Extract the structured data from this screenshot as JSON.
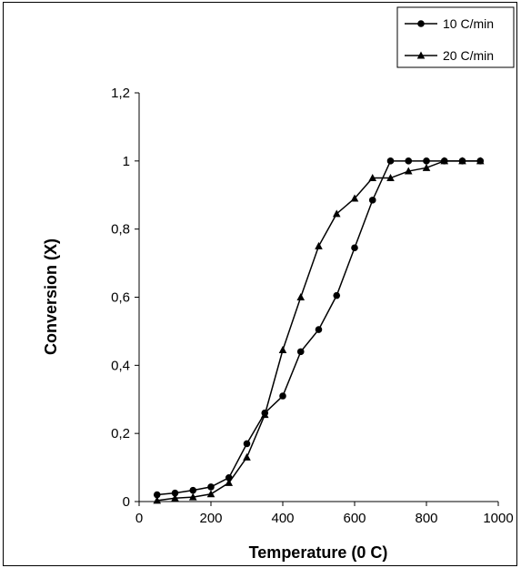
{
  "chart_data": {
    "type": "line",
    "title": "",
    "xlabel": "Temperature (0 C)",
    "ylabel": "Conversion (X)",
    "xlim": [
      0,
      1000
    ],
    "ylim": [
      0,
      1.2
    ],
    "x_ticks": [
      "0",
      "200",
      "400",
      "600",
      "800",
      "1000"
    ],
    "y_ticks": [
      "0",
      "0,2",
      "0,4",
      "0,6",
      "0,8",
      "1",
      "1,2"
    ],
    "grid": false,
    "legend_position": "top-right",
    "series": [
      {
        "name": "10 C/min",
        "marker": "circle",
        "color": "#000000",
        "x": [
          50,
          100,
          150,
          200,
          250,
          300,
          350,
          400,
          450,
          500,
          550,
          600,
          650,
          700,
          750,
          800,
          850,
          900,
          950
        ],
        "y": [
          0.02,
          0.025,
          0.033,
          0.043,
          0.07,
          0.17,
          0.26,
          0.31,
          0.44,
          0.505,
          0.605,
          0.745,
          0.885,
          1.0,
          1.0,
          1.0,
          1.0,
          1.0,
          1.0
        ]
      },
      {
        "name": "20 C/min",
        "marker": "triangle",
        "color": "#000000",
        "x": [
          50,
          100,
          150,
          200,
          250,
          300,
          350,
          400,
          450,
          500,
          550,
          600,
          650,
          700,
          750,
          800,
          850,
          900,
          950
        ],
        "y": [
          0.003,
          0.01,
          0.013,
          0.022,
          0.055,
          0.13,
          0.255,
          0.445,
          0.6,
          0.75,
          0.845,
          0.89,
          0.95,
          0.95,
          0.97,
          0.98,
          1.0,
          1.0,
          1.0
        ]
      }
    ]
  }
}
